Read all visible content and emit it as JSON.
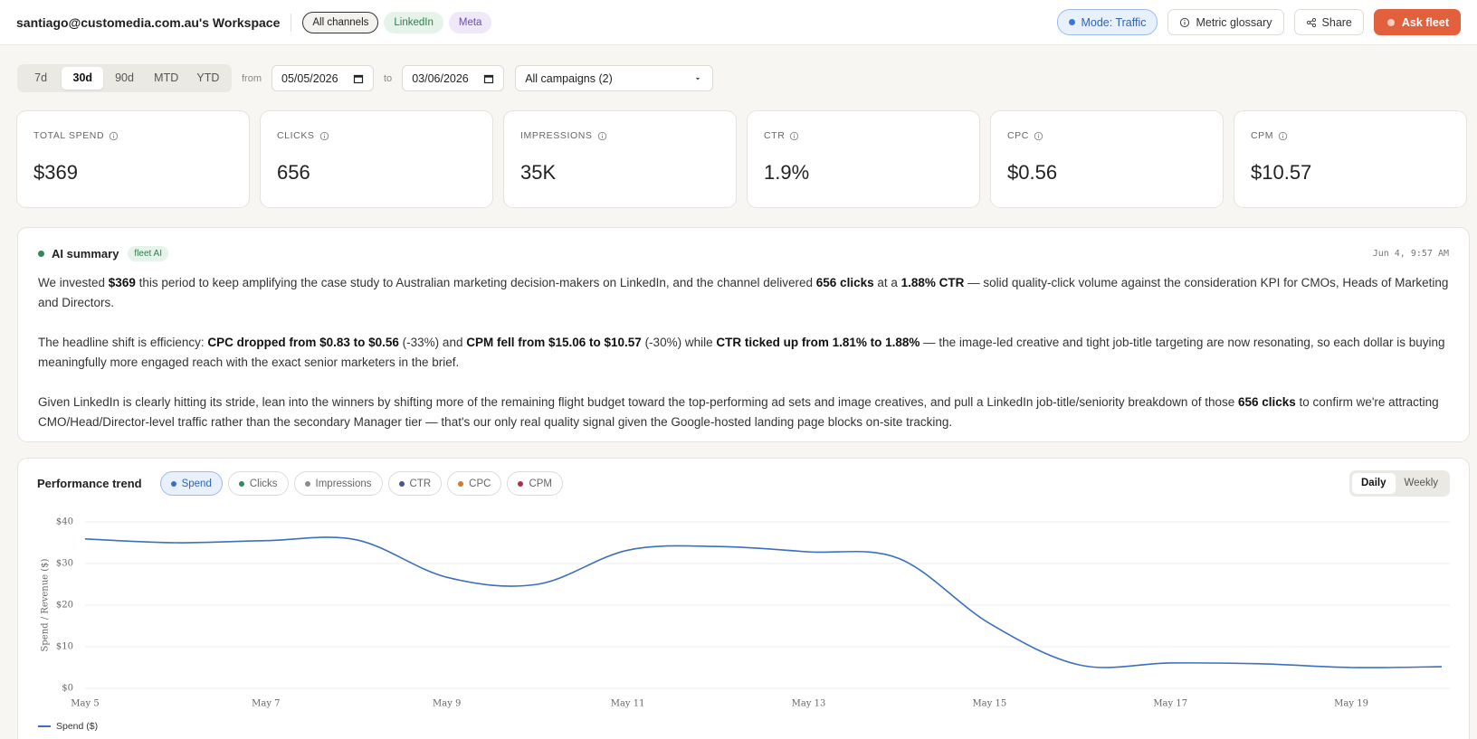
{
  "header": {
    "workspace": "santiago@customedia.com.au's Workspace",
    "channels": [
      "All channels",
      "LinkedIn",
      "Meta"
    ],
    "mode": "Mode: Traffic",
    "buttons": [
      "Metric glossary",
      "Share",
      "Ask fleet"
    ]
  },
  "toolbar": {
    "ranges": [
      "7d",
      "30d",
      "90d",
      "MTD",
      "YTD"
    ],
    "from_label": "from",
    "from_date": "05/05/2026",
    "to_label": "to",
    "to_date": "03/06/2026",
    "campaign": "All campaigns (2)"
  },
  "kpis": [
    {
      "label": "TOTAL SPEND",
      "value": "$369"
    },
    {
      "label": "CLICKS",
      "value": "656"
    },
    {
      "label": "IMPRESSIONS",
      "value": "35K"
    },
    {
      "label": "CTR",
      "value": "1.9%"
    },
    {
      "label": "CPC",
      "value": "$0.56"
    },
    {
      "label": "CPM",
      "value": "$10.57"
    }
  ],
  "summary": {
    "title": "AI summary",
    "badge": "fleet AI",
    "timestamp": "Jun 4, 9:57 AM",
    "paragraphs": [
      [
        "We invested ",
        {
          "text": "$369",
          "bold": true
        },
        " this period to keep amplifying the case study to Australian marketing decision-makers on LinkedIn, and the channel delivered ",
        {
          "text": "656 clicks",
          "bold": true
        },
        " at a ",
        {
          "text": "1.88% CTR",
          "bold": true
        },
        " — solid quality-click volume against the consideration KPI for CMOs, Heads of Marketing and Directors."
      ],
      [
        "The headline shift is efficiency: ",
        {
          "text": "CPC dropped from $0.83 to $0.56",
          "bold": true
        },
        " (-33%) and ",
        {
          "text": "CPM fell from $15.06 to $10.57",
          "bold": true
        },
        " (-30%) while ",
        {
          "text": "CTR ticked up from 1.81% to 1.88%",
          "bold": true
        },
        " — the image-led creative and tight job-title targeting are now resonating, so each dollar is buying meaningfully more engaged reach with the exact senior marketers in the brief."
      ],
      [
        "Given LinkedIn is clearly hitting its stride, lean into the winners by shifting more of the remaining flight budget toward the top-performing ad sets and image creatives, and pull a LinkedIn job-title/seniority breakdown of those ",
        {
          "text": "656 clicks",
          "bold": true
        },
        " to confirm we're attracting CMO/Head/Director-level traffic rather than the secondary Manager tier — that's our only real quality signal given the Google-hosted landing page blocks on-site tracking."
      ]
    ]
  },
  "trend": {
    "metrics": [
      {
        "label": "Spend",
        "color": "#3b6fc0"
      },
      {
        "label": "Clicks",
        "color": "#2e8a5f"
      },
      {
        "label": "Impressions",
        "color": "#8c8c8c"
      },
      {
        "label": "CTR",
        "color": "#4b4f9c"
      },
      {
        "label": "CPC",
        "color": "#d07a2a"
      },
      {
        "label": "CPM",
        "color": "#b0304a"
      }
    ],
    "views": [
      "Daily",
      "Weekly"
    ]
  },
  "chart_data": {
    "type": "line",
    "title": "Performance trend",
    "y_label": "Spend / Revenue ($)",
    "categories": [
      "May 5",
      null,
      "May 7",
      null,
      "May 9",
      null,
      "May 11",
      null,
      "May 13",
      null,
      "May 15",
      null,
      "May 17",
      null,
      "May 19",
      null
    ],
    "series": [
      {
        "name": "Spend ($)",
        "color": "#3b6fc0",
        "values": [
          35.9,
          35,
          35.5,
          35.7,
          26.7,
          25,
          33.2,
          34.1,
          32.8,
          31.2,
          15.6,
          5.6,
          6.1,
          5.9,
          5,
          5.2
        ]
      }
    ],
    "ylim": [
      0,
      40
    ],
    "yticks": [
      {
        "value": 0,
        "label": "$0"
      },
      {
        "value": 10,
        "label": "$10"
      },
      {
        "value": 20,
        "label": "$20"
      },
      {
        "value": 30,
        "label": "$30"
      },
      {
        "value": 40,
        "label": "$40"
      }
    ],
    "grid": true
  }
}
